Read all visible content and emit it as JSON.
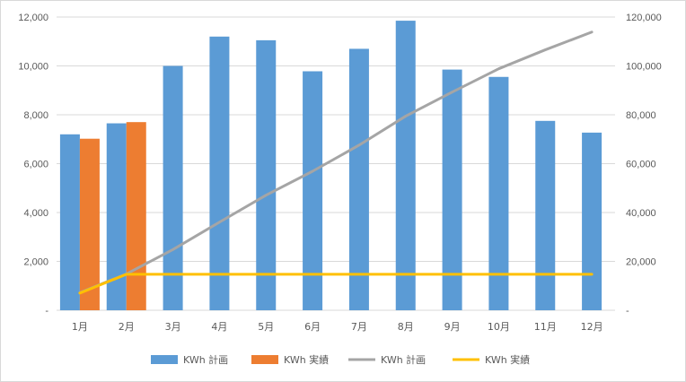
{
  "chart_data": {
    "type": "bar",
    "categories": [
      "1月",
      "2月",
      "3月",
      "4月",
      "5月",
      "6月",
      "7月",
      "8月",
      "9月",
      "10月",
      "11月",
      "12月"
    ],
    "y_left": {
      "range": [
        0,
        12000
      ],
      "ticks": [
        0,
        2000,
        4000,
        6000,
        8000,
        10000,
        12000
      ],
      "tick_labels": [
        "-",
        "2,000",
        "4,000",
        "6,000",
        "8,000",
        "10,000",
        "12,000"
      ]
    },
    "y_right": {
      "range": [
        0,
        120000
      ],
      "ticks": [
        0,
        20000,
        40000,
        60000,
        80000,
        100000,
        120000
      ],
      "tick_labels": [
        "-",
        "20,000",
        "40,000",
        "60,000",
        "80,000",
        "100,000",
        "120,000"
      ]
    },
    "grid": true,
    "legend_position": "bottom",
    "series": [
      {
        "name": "KWh 計画",
        "kind": "bar",
        "axis": "left",
        "color": "#5b9bd5",
        "values": [
          7200,
          7650,
          10000,
          11200,
          11050,
          9780,
          10700,
          11850,
          9850,
          9550,
          7750,
          7270
        ]
      },
      {
        "name": "KWh 実績",
        "kind": "bar",
        "axis": "left",
        "color": "#ed7d31",
        "values": [
          7020,
          7700,
          null,
          null,
          null,
          null,
          null,
          null,
          null,
          null,
          null,
          null
        ]
      },
      {
        "name": "KWh 計画",
        "kind": "line",
        "axis": "right",
        "color": "#a5a5a5",
        "values": [
          7200,
          14850,
          24850,
          36050,
          47100,
          56880,
          67580,
          79430,
          89280,
          98830,
          106580,
          113850
        ]
      },
      {
        "name": "KWh 実績",
        "kind": "line",
        "axis": "right",
        "color": "#ffc000",
        "values": [
          7020,
          14720,
          14720,
          14720,
          14720,
          14720,
          14720,
          14720,
          14720,
          14720,
          14720,
          14720
        ]
      }
    ]
  }
}
